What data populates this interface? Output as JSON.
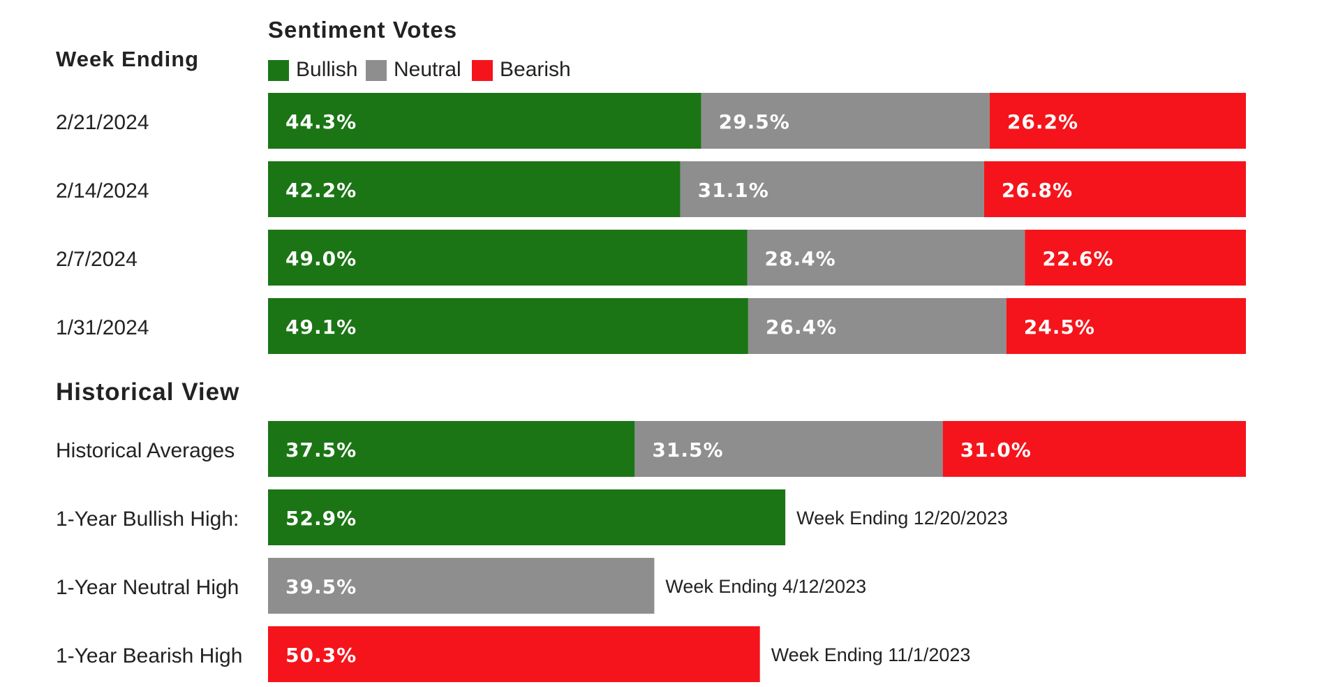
{
  "colors": {
    "bullish": "#1b7515",
    "neutral": "#8e8e8e",
    "bearish": "#f5141b"
  },
  "chart_data": {
    "type": "bar",
    "stacked": true,
    "orientation": "horizontal",
    "title": "Sentiment Votes",
    "legend": {
      "placement": "top",
      "entries": [
        "Bullish",
        "Neutral",
        "Bearish"
      ]
    },
    "weekly_section_title": "Week Ending",
    "weekly": {
      "categories": [
        "2/21/2024",
        "2/14/2024",
        "2/7/2024",
        "1/31/2024"
      ],
      "series": [
        {
          "name": "Bullish",
          "values": [
            44.3,
            42.2,
            49.0,
            49.1
          ],
          "labels": [
            "44.3%",
            "42.2%",
            "49.0%",
            "49.1%"
          ]
        },
        {
          "name": "Neutral",
          "values": [
            29.5,
            31.1,
            28.4,
            26.4
          ],
          "labels": [
            "29.5%",
            "31.1%",
            "28.4%",
            "26.4%"
          ]
        },
        {
          "name": "Bearish",
          "values": [
            26.2,
            26.8,
            22.6,
            24.5
          ],
          "labels": [
            "26.2%",
            "26.8%",
            "22.6%",
            "24.5%"
          ]
        }
      ]
    },
    "historical_section_title": "Historical View",
    "historical_averages": {
      "label": "Historical Averages",
      "values": [
        37.5,
        31.5,
        31.0
      ],
      "labels": [
        "37.5%",
        "31.5%",
        "31.0%"
      ]
    },
    "highs": [
      {
        "label": "1-Year Bullish High:",
        "sentiment": "Bullish",
        "value": 52.9,
        "value_label": "52.9%",
        "note": "Week Ending 12/20/2023"
      },
      {
        "label": "1-Year Neutral High",
        "sentiment": "Neutral",
        "value": 39.5,
        "value_label": "39.5%",
        "note": "Week Ending 4/12/2023"
      },
      {
        "label": "1-Year Bearish High",
        "sentiment": "Bearish",
        "value": 50.3,
        "value_label": "50.3%",
        "note": "Week Ending 11/1/2023"
      }
    ],
    "xlim": [
      0,
      100
    ]
  }
}
